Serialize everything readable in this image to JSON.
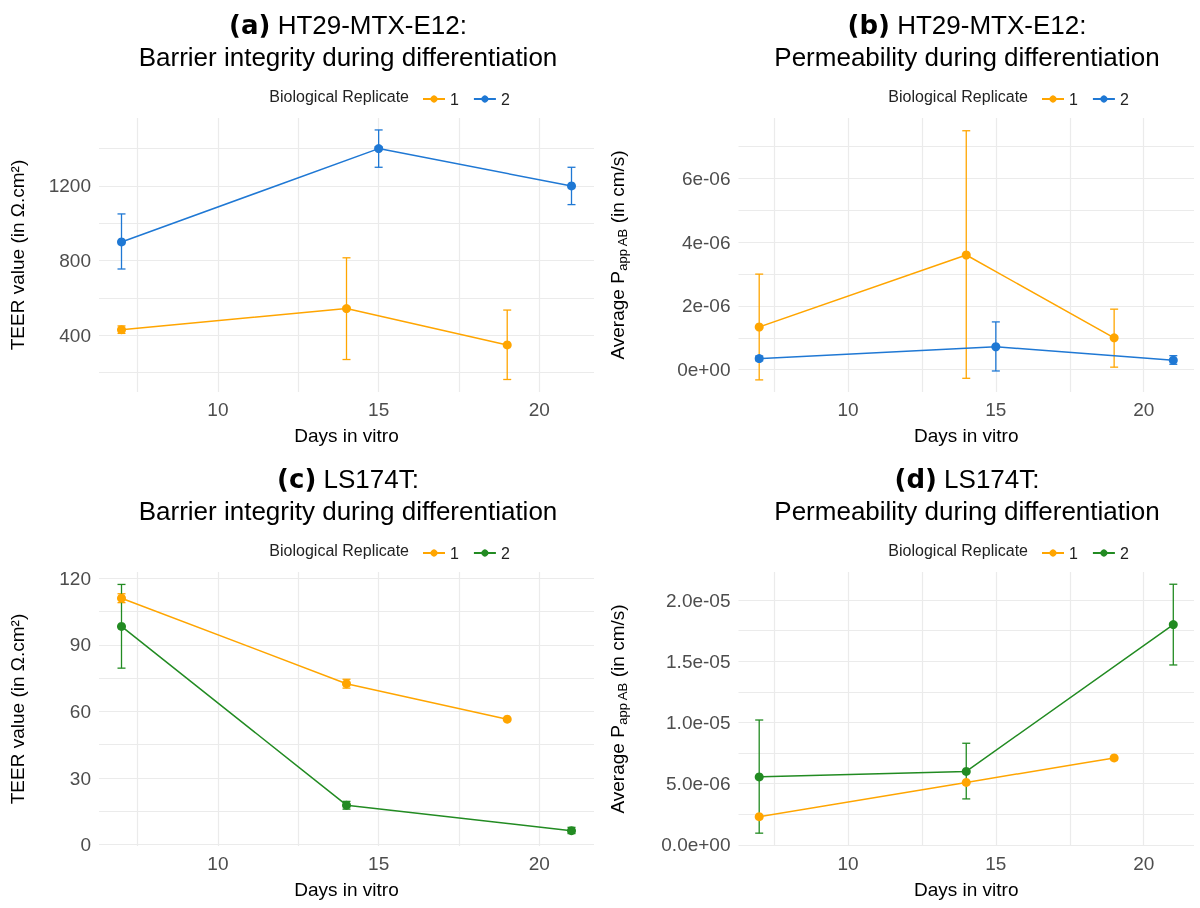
{
  "chart_data": [
    {
      "type": "line",
      "title": "(a) HT29-MTX-E12:\nBarrier integrity during differentiation",
      "xlabel": "Days in vitro",
      "ylabel": "TEER value (in Ω.cm²)",
      "legend_title": "Biological Replicate",
      "legend": "top",
      "grid": true,
      "marker": "circle",
      "xlim": [
        6.3,
        21.7
      ],
      "xticks": [
        {
          "value": 7.5,
          "label": null
        },
        10,
        {
          "value": 12.5,
          "label": null
        },
        15,
        {
          "value": 17.5,
          "label": null
        },
        20
      ],
      "ylim": [
        96,
        1564
      ],
      "yticks": [
        {
          "value": 200,
          "label": null
        },
        400,
        {
          "value": 600,
          "label": null
        },
        800,
        {
          "value": 1000,
          "label": null
        },
        1200,
        {
          "value": 1400,
          "label": null
        }
      ],
      "series": [
        {
          "name": "1",
          "color": "#ffa500",
          "x": [
            7,
            14,
            19
          ],
          "values": [
            430,
            543,
            348
          ],
          "errors": [
            [
              410,
              450
            ],
            [
              270,
              815
            ],
            [
              163,
              535
            ]
          ]
        },
        {
          "name": "2",
          "color": "#1f78d4",
          "x": [
            7,
            15,
            21
          ],
          "values": [
            900,
            1400,
            1200
          ],
          "errors": [
            [
              755,
              1050
            ],
            [
              1300,
              1500
            ],
            [
              1100,
              1300
            ]
          ]
        }
      ]
    },
    {
      "type": "line",
      "title": "(b) HT29-MTX-E12:\nPermeability during differentiation",
      "xlabel": "Days in vitro",
      "ylabel": "Average P$_{app AB}$ (in cm/s)",
      "legend_title": "Biological Replicate",
      "legend": "top",
      "grid": true,
      "marker": "circle",
      "xlim": [
        6.3,
        21.7
      ],
      "xticks": [
        {
          "value": 7.5,
          "label": null
        },
        10,
        {
          "value": 12.5,
          "label": null
        },
        15,
        {
          "value": 17.5,
          "label": null
        },
        20
      ],
      "ylim": [
        -7e-07,
        7.9e-06
      ],
      "yticks": [
        {
          "value": 0,
          "label": "0e+00"
        },
        {
          "value": 1e-06,
          "label": null
        },
        {
          "value": 2e-06,
          "label": "2e-06"
        },
        {
          "value": 3e-06,
          "label": null
        },
        {
          "value": 4e-06,
          "label": "4e-06"
        },
        {
          "value": 5e-06,
          "label": null
        },
        {
          "value": 6e-06,
          "label": "6e-06"
        },
        {
          "value": 7e-06,
          "label": null
        }
      ],
      "series": [
        {
          "name": "1",
          "color": "#ffa500",
          "x": [
            7,
            14,
            19
          ],
          "values": [
            1.34e-06,
            3.6e-06,
            1e-06
          ],
          "errors": [
            [
              -3.2e-07,
              3e-06
            ],
            [
              -2.7e-07,
              7.5e-06
            ],
            [
              8e-08,
              1.9e-06
            ]
          ]
        },
        {
          "name": "2",
          "color": "#1f78d4",
          "x": [
            7,
            15,
            21
          ],
          "values": [
            3.5e-07,
            7.2e-07,
            3e-07
          ],
          "errors": [
            [
              2.8e-07,
              4.3e-07
            ],
            [
              -4e-08,
              1.5e-06
            ],
            [
              1.7e-07,
              4.4e-07
            ]
          ]
        }
      ]
    },
    {
      "type": "line",
      "title": "(c) LS174T:\nBarrier integrity during differentiation",
      "xlabel": "Days in vitro",
      "ylabel": "TEER value (in Ω.cm²)",
      "legend_title": "Biological Replicate",
      "legend": "top",
      "grid": true,
      "marker": "circle",
      "xlim": [
        6.3,
        21.7
      ],
      "xticks": [
        {
          "value": 7.5,
          "label": null
        },
        10,
        {
          "value": 12.5,
          "label": null
        },
        15,
        {
          "value": 17.5,
          "label": null
        },
        20
      ],
      "ylim": [
        -0.6,
        122.8
      ],
      "yticks": [
        0,
        {
          "value": 15,
          "label": null
        },
        30,
        {
          "value": 45,
          "label": null
        },
        60,
        {
          "value": 75,
          "label": null
        },
        90,
        {
          "value": 105,
          "label": null
        },
        120
      ],
      "series": [
        {
          "name": "1",
          "color": "#ffa500",
          "x": [
            7,
            14,
            19
          ],
          "values": [
            111,
            72.5,
            56.5
          ],
          "errors": [
            [
              109,
              113
            ],
            [
              70.5,
              74.5
            ],
            null
          ]
        },
        {
          "name": "2",
          "color": "#228b22",
          "x": [
            7,
            14,
            21
          ],
          "values": [
            98.3,
            17.8,
            6.3
          ],
          "errors": [
            [
              79.5,
              117.2
            ],
            [
              16,
              19.5
            ],
            [
              5,
              7.8
            ]
          ]
        }
      ]
    },
    {
      "type": "line",
      "title": "(d) LS174T:\nPermeability during differentiation",
      "xlabel": "Days in vitro",
      "ylabel": "Average P$_{app AB}$ (in cm/s)",
      "legend_title": "Biological Replicate",
      "legend": "top",
      "grid": true,
      "marker": "circle",
      "xlim": [
        6.3,
        21.7
      ],
      "xticks": [
        {
          "value": 7.5,
          "label": null
        },
        10,
        {
          "value": 12.5,
          "label": null
        },
        15,
        {
          "value": 17.5,
          "label": null
        },
        20
      ],
      "ylim": [
        -1e-07,
        2.23e-05
      ],
      "yticks": [
        {
          "value": 0,
          "label": "0.0e+00"
        },
        {
          "value": 2.5e-06,
          "label": null
        },
        {
          "value": 5e-06,
          "label": "5.0e-06"
        },
        {
          "value": 7.5e-06,
          "label": null
        },
        {
          "value": 1e-05,
          "label": "1.0e-05"
        },
        {
          "value": 1.25e-05,
          "label": null
        },
        {
          "value": 1.5e-05,
          "label": "1.5e-05"
        },
        {
          "value": 1.75e-05,
          "label": null
        },
        {
          "value": 2e-05,
          "label": "2.0e-05"
        }
      ],
      "series": [
        {
          "name": "1",
          "color": "#ffa500",
          "x": [
            7,
            14,
            19
          ],
          "values": [
            2.3e-06,
            5.1e-06,
            7.1e-06
          ],
          "errors": [
            null,
            null,
            null
          ]
        },
        {
          "name": "2",
          "color": "#228b22",
          "x": [
            7,
            14,
            21
          ],
          "values": [
            5.55e-06,
            6e-06,
            1.8e-05
          ],
          "errors": [
            [
              9.5e-07,
              1.02e-05
            ],
            [
              3.75e-06,
              8.3e-06
            ],
            [
              1.47e-05,
              2.13e-05
            ]
          ]
        }
      ]
    }
  ]
}
